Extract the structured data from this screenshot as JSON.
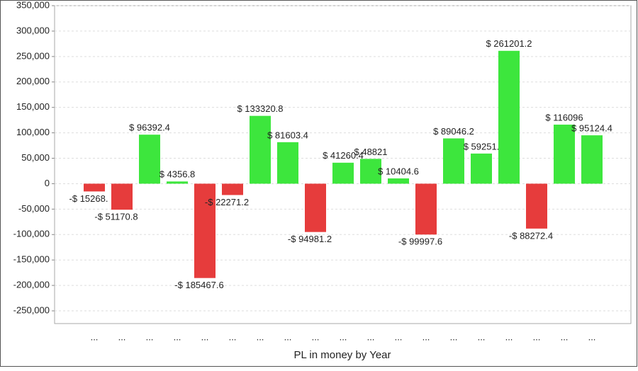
{
  "chart_data": {
    "type": "bar",
    "x_label": "PL in money by Year",
    "categories": [
      "...",
      "...",
      "...",
      "...",
      "...",
      "...",
      "...",
      "...",
      "...",
      "...",
      "...",
      "...",
      "...",
      "...",
      "...",
      "...",
      "...",
      "...",
      "..."
    ],
    "values": [
      -15268,
      -51170.8,
      96392.4,
      4356.8,
      -185467.6,
      -22271.2,
      133320.8,
      81603.4,
      -94981.2,
      41260.4,
      48821,
      10404.6,
      -99997.6,
      89046.2,
      59251,
      261201.2,
      -88272.4,
      116096,
      95124.4
    ],
    "value_labels": [
      "-$ 15268.",
      "-$ 51170.8",
      "$ 96392.4",
      "$ 4356.8",
      "-$ 185467.6",
      "-$ 22271.2",
      "$ 133320.8",
      "$ 81603.4",
      "-$ 94981.2",
      "$ 41260.4",
      "$ 48821",
      "$ 10404.6",
      "-$ 99997.6",
      "$ 89046.2",
      "$ 59251.",
      "$ 261201.2",
      "-$ 88272.4",
      "$ 116096",
      "$ 95124.4"
    ],
    "positive_color": "#3de63d",
    "negative_color": "#e63c3c",
    "ylim": [
      -275000,
      350000
    ],
    "yticks": [
      {
        "value": -250000,
        "label": "-250,000"
      },
      {
        "value": -200000,
        "label": "-200,000"
      },
      {
        "value": -150000,
        "label": "-150,000"
      },
      {
        "value": -100000,
        "label": "-100,000"
      },
      {
        "value": -50000,
        "label": "-50,000"
      },
      0,
      {
        "value": 50000,
        "label": "50,000"
      },
      {
        "value": 100000,
        "label": "100,000"
      },
      {
        "value": 150000,
        "label": "150,000"
      },
      {
        "value": 200000,
        "label": "200,000"
      },
      {
        "value": 250000,
        "label": "250,000"
      },
      {
        "value": 300000,
        "label": "300,000"
      },
      {
        "value": 350000,
        "label": "350,000"
      }
    ],
    "grid": true
  }
}
